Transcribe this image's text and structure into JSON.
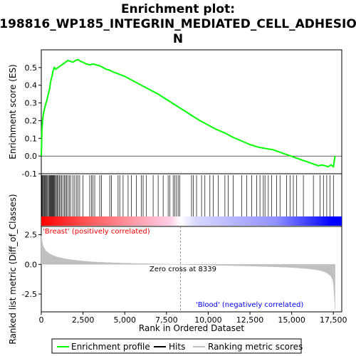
{
  "chart_data": {
    "type": "line",
    "title_lines": [
      "Enrichment plot:",
      "198816_WP185_INTEGRIN_MEDIATED_CELL_ADHESIO",
      "N"
    ],
    "xlabel": "Rank in Ordered Dataset",
    "xlim": [
      0,
      18000
    ],
    "x_ticks": [
      "0",
      "2,500",
      "5,000",
      "7,500",
      "10,000",
      "12,500",
      "15,000",
      "17,500"
    ],
    "x_tick_values": [
      0,
      2500,
      5000,
      7500,
      10000,
      12500,
      15000,
      17500
    ],
    "top_panel": {
      "ylabel": "Enrichment score (ES)",
      "ylim": [
        -0.1,
        0.6
      ],
      "y_ticks": [
        "-0.1",
        "0.0",
        "0.1",
        "0.2",
        "0.3",
        "0.4",
        "0.5"
      ],
      "y_tick_values": [
        -0.1,
        0.0,
        0.1,
        0.2,
        0.3,
        0.4,
        0.5
      ],
      "series": [
        {
          "name": "Enrichment profile",
          "color": "#00ff00",
          "x": [
            0,
            40,
            80,
            150,
            250,
            320,
            420,
            500,
            560,
            640,
            700,
            780,
            860,
            1000,
            1150,
            1300,
            1450,
            1600,
            1750,
            1900,
            2050,
            2200,
            2350,
            2500,
            2700,
            2900,
            3100,
            3300,
            3500,
            3700,
            3900,
            4100,
            4300,
            4600,
            5000,
            5400,
            5800,
            6200,
            6600,
            7000,
            7500,
            8000,
            8500,
            9000,
            9500,
            10000,
            10500,
            11000,
            11500,
            12000,
            12500,
            13000,
            13300,
            13600,
            13900,
            14200,
            14500,
            14800,
            15100,
            15400,
            15700,
            16000,
            16300,
            16600,
            16800,
            17000,
            17200,
            17350,
            17500,
            17550,
            17600
          ],
          "y": [
            0.0,
            0.15,
            0.21,
            0.25,
            0.29,
            0.31,
            0.35,
            0.38,
            0.42,
            0.45,
            0.48,
            0.5,
            0.49,
            0.5,
            0.51,
            0.52,
            0.53,
            0.54,
            0.535,
            0.53,
            0.54,
            0.545,
            0.535,
            0.53,
            0.52,
            0.515,
            0.52,
            0.515,
            0.51,
            0.5,
            0.49,
            0.485,
            0.475,
            0.465,
            0.45,
            0.43,
            0.41,
            0.39,
            0.37,
            0.35,
            0.32,
            0.29,
            0.26,
            0.23,
            0.2,
            0.175,
            0.15,
            0.13,
            0.105,
            0.085,
            0.065,
            0.05,
            0.045,
            0.04,
            0.035,
            0.025,
            0.015,
            0.005,
            -0.005,
            -0.015,
            -0.025,
            -0.035,
            -0.045,
            -0.055,
            -0.05,
            -0.055,
            -0.06,
            -0.05,
            -0.06,
            -0.03,
            0.0
          ]
        }
      ]
    },
    "hits": {
      "name": "Hits",
      "color": "#000000",
      "x": [
        30,
        70,
        110,
        160,
        200,
        240,
        290,
        330,
        380,
        430,
        480,
        520,
        560,
        600,
        640,
        680,
        720,
        760,
        800,
        850,
        900,
        960,
        1020,
        1080,
        1150,
        1220,
        1300,
        1380,
        1450,
        1520,
        1600,
        1680,
        1760,
        1900,
        2000,
        2100,
        2200,
        2300,
        2500,
        2900,
        3000,
        3100,
        3200,
        3500,
        3600,
        4100,
        4200,
        4600,
        4700,
        4900,
        5200,
        5400,
        5700,
        6000,
        6100,
        6300,
        6700,
        7000,
        7300,
        7600,
        7700,
        7900,
        8000,
        8100,
        8200,
        8300,
        9000,
        9100,
        9300,
        9600,
        9800,
        10100,
        10300,
        10600,
        11000,
        11200,
        11500,
        12000,
        12300,
        12600,
        12900,
        13100,
        13300,
        13400,
        13600,
        13800,
        14100,
        14300,
        14700,
        14900,
        15100,
        15300,
        15700,
        16300,
        16700,
        16900,
        17100,
        17300,
        17500
      ]
    },
    "bottom_panel": {
      "ylabel": "Ranked list metric (Diff_of_Classes)",
      "ylim": [
        -4.0,
        3.2
      ],
      "y_ticks": [
        "2.5",
        "0.0",
        "-2.5"
      ],
      "y_tick_values": [
        2.5,
        0.0,
        -2.5
      ],
      "series": [
        {
          "name": "Ranking metric scores",
          "color": "#c0c0c0",
          "x": [
            0,
            50,
            100,
            200,
            300,
            500,
            700,
            1000,
            1500,
            2000,
            3000,
            4000,
            5000,
            6000,
            7000,
            8000,
            8339,
            9000,
            10000,
            11000,
            12000,
            13000,
            14000,
            15000,
            15500,
            16000,
            16500,
            16800,
            17000,
            17200,
            17350,
            17450,
            17500,
            17550,
            17600
          ],
          "y": [
            2.4,
            1.9,
            1.6,
            1.3,
            1.1,
            0.9,
            0.75,
            0.6,
            0.45,
            0.35,
            0.22,
            0.15,
            0.1,
            0.07,
            0.04,
            0.01,
            0.0,
            -0.03,
            -0.06,
            -0.09,
            -0.12,
            -0.16,
            -0.2,
            -0.26,
            -0.31,
            -0.37,
            -0.46,
            -0.55,
            -0.65,
            -0.8,
            -1.0,
            -1.3,
            -1.6,
            -2.5,
            -3.8
          ]
        }
      ],
      "zero_cross_label": "Zero cross at 8339",
      "zero_cross": 8339,
      "positive_label": "'Breast' (positively correlated)",
      "negative_label": "'Blood' (negatively correlated)",
      "positive_color": "#ff0000",
      "negative_color": "#0000ff"
    },
    "legend": {
      "placement": "bottom",
      "entries": [
        {
          "label": "Enrichment profile",
          "color": "#00ff00"
        },
        {
          "label": "Hits",
          "color": "#000000"
        },
        {
          "label": "Ranking metric scores",
          "color": "#c0c0c0"
        }
      ]
    }
  }
}
